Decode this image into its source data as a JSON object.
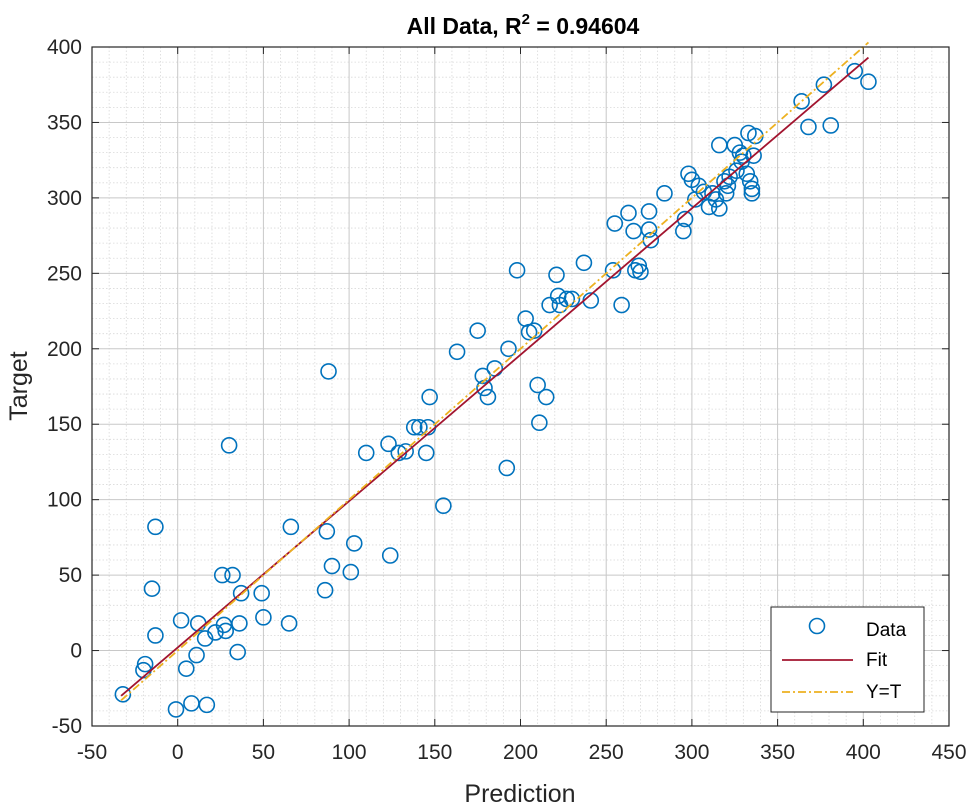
{
  "chart_data": {
    "type": "scatter",
    "title": "All Data, R",
    "title_superscript": "2",
    "title_value": " = 0.94604",
    "xlabel": "Prediction",
    "ylabel": "Target",
    "xlim": [
      -50,
      450
    ],
    "ylim": [
      -50,
      400
    ],
    "xticks": [
      -50,
      0,
      50,
      100,
      150,
      200,
      250,
      300,
      350,
      400,
      450
    ],
    "yticks": [
      -50,
      0,
      50,
      100,
      150,
      200,
      250,
      300,
      350,
      400
    ],
    "grid": true,
    "minor_grid": true,
    "legend_position": "bottom-right",
    "series": [
      {
        "name": "Data",
        "kind": "markers",
        "color": "#0072bd",
        "points": [
          [
            -32,
            -29
          ],
          [
            -20,
            -13
          ],
          [
            -19,
            -9
          ],
          [
            -15,
            41
          ],
          [
            -13,
            82
          ],
          [
            -13,
            10
          ],
          [
            -1,
            -39
          ],
          [
            2,
            20
          ],
          [
            5,
            -12
          ],
          [
            8,
            -35
          ],
          [
            11,
            -3
          ],
          [
            12,
            18
          ],
          [
            16,
            8
          ],
          [
            17,
            -36
          ],
          [
            22,
            12
          ],
          [
            26,
            50
          ],
          [
            27,
            17
          ],
          [
            28,
            13
          ],
          [
            30,
            136
          ],
          [
            32,
            50
          ],
          [
            35,
            -1
          ],
          [
            36,
            18
          ],
          [
            37,
            38
          ],
          [
            49,
            38
          ],
          [
            50,
            22
          ],
          [
            65,
            18
          ],
          [
            66,
            82
          ],
          [
            86,
            40
          ],
          [
            87,
            79
          ],
          [
            88,
            185
          ],
          [
            90,
            56
          ],
          [
            101,
            52
          ],
          [
            103,
            71
          ],
          [
            110,
            131
          ],
          [
            124,
            63
          ],
          [
            123,
            137
          ],
          [
            129,
            131
          ],
          [
            133,
            132
          ],
          [
            138,
            148
          ],
          [
            141,
            148
          ],
          [
            145,
            131
          ],
          [
            146,
            148
          ],
          [
            147,
            168
          ],
          [
            155,
            96
          ],
          [
            163,
            198
          ],
          [
            175,
            212
          ],
          [
            178,
            182
          ],
          [
            179,
            174
          ],
          [
            181,
            168
          ],
          [
            185,
            187
          ],
          [
            193,
            200
          ],
          [
            192,
            121
          ],
          [
            198,
            252
          ],
          [
            203,
            220
          ],
          [
            205,
            211
          ],
          [
            208,
            212
          ],
          [
            210,
            176
          ],
          [
            211,
            151
          ],
          [
            215,
            168
          ],
          [
            217,
            229
          ],
          [
            221,
            249
          ],
          [
            222,
            235
          ],
          [
            223,
            229
          ],
          [
            227,
            233
          ],
          [
            230,
            233
          ],
          [
            237,
            257
          ],
          [
            241,
            232
          ],
          [
            254,
            252
          ],
          [
            255,
            283
          ],
          [
            259,
            229
          ],
          [
            263,
            290
          ],
          [
            266,
            278
          ],
          [
            267,
            252
          ],
          [
            269,
            255
          ],
          [
            270,
            251
          ],
          [
            275,
            291
          ],
          [
            275,
            279
          ],
          [
            276,
            272
          ],
          [
            284,
            303
          ],
          [
            295,
            278
          ],
          [
            296,
            286
          ],
          [
            298,
            316
          ],
          [
            300,
            312
          ],
          [
            302,
            299
          ],
          [
            304,
            308
          ],
          [
            307,
            304
          ],
          [
            310,
            294
          ],
          [
            312,
            303
          ],
          [
            314,
            299
          ],
          [
            316,
            335
          ],
          [
            316,
            293
          ],
          [
            319,
            311
          ],
          [
            320,
            303
          ],
          [
            321,
            308
          ],
          [
            322,
            314
          ],
          [
            325,
            335
          ],
          [
            326,
            318
          ],
          [
            328,
            330
          ],
          [
            329,
            324
          ],
          [
            330,
            328
          ],
          [
            332,
            316
          ],
          [
            333,
            343
          ],
          [
            334,
            311
          ],
          [
            335,
            303
          ],
          [
            335,
            306
          ],
          [
            336,
            328
          ],
          [
            337,
            341
          ],
          [
            364,
            364
          ],
          [
            368,
            347
          ],
          [
            377,
            375
          ],
          [
            381,
            348
          ],
          [
            395,
            384
          ],
          [
            403,
            377
          ]
        ]
      },
      {
        "name": "Fit",
        "kind": "line",
        "color": "#a2142f",
        "x": [
          -33,
          403
        ],
        "y": [
          -30,
          393
        ]
      },
      {
        "name": "Y=T",
        "kind": "dashdot",
        "color": "#edb120",
        "x": [
          -33,
          403
        ],
        "y": [
          -33,
          403
        ]
      }
    ]
  }
}
